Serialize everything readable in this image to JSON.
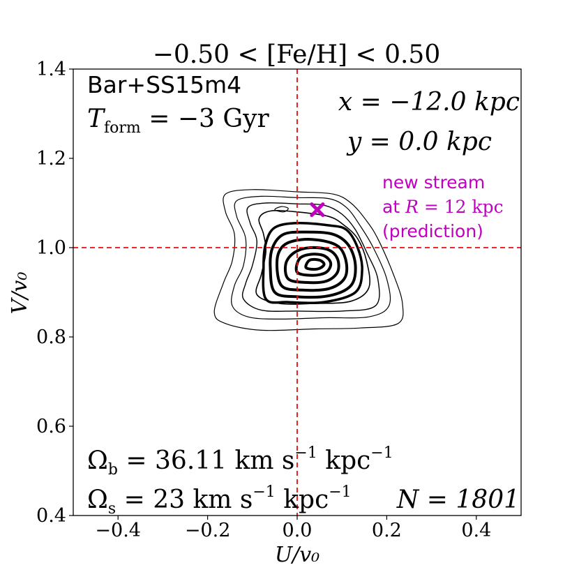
{
  "chart_data": {
    "type": "contour",
    "title": "−0.50 < [Fe/H] < 0.50",
    "xlabel": "U/v₀",
    "ylabel": "V/v₀",
    "xlim": [
      -0.5,
      0.5
    ],
    "ylim": [
      0.4,
      1.4
    ],
    "xticks": [
      -0.4,
      -0.2,
      0.0,
      0.2,
      0.4
    ],
    "xtick_labels": [
      "−0.4",
      "−0.2",
      "0.0",
      "0.2",
      "0.4"
    ],
    "yticks": [
      0.4,
      0.6,
      0.8,
      1.0,
      1.2,
      1.4
    ],
    "ytick_labels": [
      "0.4",
      "0.6",
      "0.8",
      "1.0",
      "1.2",
      "1.4"
    ],
    "reference_lines": {
      "x": 0.0,
      "y": 1.0,
      "color": "#ff0000",
      "style": "dashed"
    },
    "marker": {
      "x": 0.045,
      "y": 1.085,
      "symbol": "x",
      "color": "#bf00bf"
    },
    "contours": [
      {
        "level": 1,
        "width": 1.2,
        "points": [
          [
            -0.185,
            0.855
          ],
          [
            -0.16,
            0.83
          ],
          [
            -0.08,
            0.815
          ],
          [
            0.04,
            0.818
          ],
          [
            0.14,
            0.82
          ],
          [
            0.225,
            0.83
          ],
          [
            0.235,
            0.875
          ],
          [
            0.215,
            0.94
          ],
          [
            0.18,
            1.02
          ],
          [
            0.155,
            1.06
          ],
          [
            0.12,
            1.1
          ],
          [
            0.08,
            1.12
          ],
          [
            0.0,
            1.125
          ],
          [
            -0.1,
            1.13
          ],
          [
            -0.16,
            1.12
          ],
          [
            -0.16,
            1.08
          ],
          [
            -0.14,
            1.03
          ],
          [
            -0.145,
            0.97
          ],
          [
            -0.165,
            0.92
          ]
        ]
      },
      {
        "level": 2,
        "width": 1.2,
        "points": [
          [
            -0.145,
            0.87
          ],
          [
            -0.11,
            0.845
          ],
          [
            -0.04,
            0.84
          ],
          [
            0.06,
            0.843
          ],
          [
            0.16,
            0.845
          ],
          [
            0.205,
            0.87
          ],
          [
            0.2,
            0.93
          ],
          [
            0.17,
            1.0
          ],
          [
            0.14,
            1.05
          ],
          [
            0.11,
            1.09
          ],
          [
            0.07,
            1.11
          ],
          [
            0.0,
            1.112
          ],
          [
            -0.08,
            1.115
          ],
          [
            -0.135,
            1.105
          ],
          [
            -0.135,
            1.07
          ],
          [
            -0.115,
            1.02
          ],
          [
            -0.12,
            0.96
          ],
          [
            -0.14,
            0.915
          ]
        ]
      },
      {
        "level": 3,
        "width": 1.4,
        "points": [
          [
            -0.12,
            0.885
          ],
          [
            -0.08,
            0.86
          ],
          [
            0.0,
            0.858
          ],
          [
            0.1,
            0.858
          ],
          [
            0.175,
            0.87
          ],
          [
            0.18,
            0.93
          ],
          [
            0.155,
            0.99
          ],
          [
            0.13,
            1.04
          ],
          [
            0.1,
            1.075
          ],
          [
            0.06,
            1.095
          ],
          [
            0.0,
            1.098
          ],
          [
            -0.07,
            1.1
          ],
          [
            -0.11,
            1.09
          ],
          [
            -0.105,
            1.055
          ],
          [
            -0.09,
            1.015
          ],
          [
            -0.1,
            0.96
          ],
          [
            -0.115,
            0.92
          ]
        ]
      },
      {
        "level": 4,
        "width": 1.6,
        "points": [
          [
            -0.09,
            0.895
          ],
          [
            -0.04,
            0.875
          ],
          [
            0.04,
            0.875
          ],
          [
            0.12,
            0.88
          ],
          [
            0.16,
            0.91
          ],
          [
            0.155,
            0.97
          ],
          [
            0.135,
            1.02
          ],
          [
            0.105,
            1.05
          ],
          [
            0.07,
            1.07
          ],
          [
            0.0,
            1.08
          ],
          [
            -0.06,
            1.082
          ],
          [
            -0.085,
            1.065
          ],
          [
            -0.075,
            1.03
          ],
          [
            -0.07,
            0.99
          ],
          [
            -0.08,
            0.94
          ]
        ]
      },
      {
        "level": 5,
        "width": 3.5,
        "points": [
          [
            -0.07,
            0.885
          ],
          [
            -0.02,
            0.878
          ],
          [
            0.06,
            0.878
          ],
          [
            0.13,
            0.9
          ],
          [
            0.145,
            0.95
          ],
          [
            0.135,
            1.0
          ],
          [
            0.11,
            1.04
          ],
          [
            0.07,
            1.05
          ],
          [
            0.0,
            1.055
          ],
          [
            -0.05,
            1.045
          ],
          [
            -0.07,
            1.01
          ],
          [
            -0.075,
            0.96
          ]
        ]
      },
      {
        "level": 6,
        "width": 4,
        "points": [
          [
            -0.05,
            0.9
          ],
          [
            0.0,
            0.89
          ],
          [
            0.07,
            0.892
          ],
          [
            0.12,
            0.915
          ],
          [
            0.13,
            0.96
          ],
          [
            0.115,
            1.005
          ],
          [
            0.08,
            1.03
          ],
          [
            0.02,
            1.035
          ],
          [
            -0.03,
            1.03
          ],
          [
            -0.055,
            1.0
          ],
          [
            -0.06,
            0.955
          ]
        ]
      },
      {
        "level": 7,
        "width": 4,
        "points": [
          [
            -0.035,
            0.915
          ],
          [
            0.01,
            0.905
          ],
          [
            0.07,
            0.908
          ],
          [
            0.105,
            0.93
          ],
          [
            0.11,
            0.965
          ],
          [
            0.095,
            1.0
          ],
          [
            0.06,
            1.015
          ],
          [
            0.01,
            1.018
          ],
          [
            -0.03,
            1.005
          ],
          [
            -0.045,
            0.97
          ]
        ]
      },
      {
        "level": 8,
        "width": 4,
        "points": [
          [
            -0.02,
            0.93
          ],
          [
            0.02,
            0.922
          ],
          [
            0.065,
            0.925
          ],
          [
            0.09,
            0.945
          ],
          [
            0.09,
            0.975
          ],
          [
            0.07,
            0.995
          ],
          [
            0.03,
            1.0
          ],
          [
            -0.005,
            0.99
          ],
          [
            -0.025,
            0.965
          ]
        ]
      },
      {
        "level": 9,
        "width": 4,
        "points": [
          [
            0.0,
            0.945
          ],
          [
            0.035,
            0.938
          ],
          [
            0.065,
            0.945
          ],
          [
            0.075,
            0.965
          ],
          [
            0.06,
            0.982
          ],
          [
            0.03,
            0.985
          ],
          [
            0.005,
            0.975
          ]
        ]
      },
      {
        "level": 10,
        "width": 4,
        "points": [
          [
            0.02,
            0.955
          ],
          [
            0.045,
            0.952
          ],
          [
            0.06,
            0.962
          ],
          [
            0.05,
            0.972
          ],
          [
            0.028,
            0.972
          ]
        ]
      },
      {
        "level": 11,
        "width": 1.2,
        "points": [
          [
            -0.05,
            1.085
          ],
          [
            -0.03,
            1.08
          ],
          [
            -0.02,
            1.088
          ],
          [
            -0.035,
            1.092
          ]
        ]
      }
    ]
  },
  "annotations": {
    "model": "Bar+SS15m4",
    "tform_symbol": "T",
    "tform_sub": "form",
    "tform_value": " = −3 Gyr",
    "x_pos": "x = −12.0 kpc",
    "y_pos": "y = 0.0 kpc",
    "stream_line1": "new stream",
    "stream_line2_prefix": "at ",
    "stream_line2_math": "R",
    "stream_line2_value": " = 12 kpc",
    "stream_line3": "(prediction)",
    "omega_b_symbol": "Ω",
    "omega_b_sub": "b",
    "omega_b_value": " = 36.11 km s",
    "omega_b_exp": "−1",
    "omega_b_unit": " kpc",
    "omega_b_unit_exp": "−1",
    "omega_s_symbol": "Ω",
    "omega_s_sub": "s",
    "omega_s_value": " = 23 km s",
    "omega_s_exp": "−1",
    "omega_s_unit": " kpc",
    "omega_s_unit_exp": "−1",
    "n_label": "N = 1801"
  },
  "colors": {
    "axes": "#000000",
    "reference": "#ff0000",
    "marker": "#bf00bf",
    "contour": "#000000"
  }
}
